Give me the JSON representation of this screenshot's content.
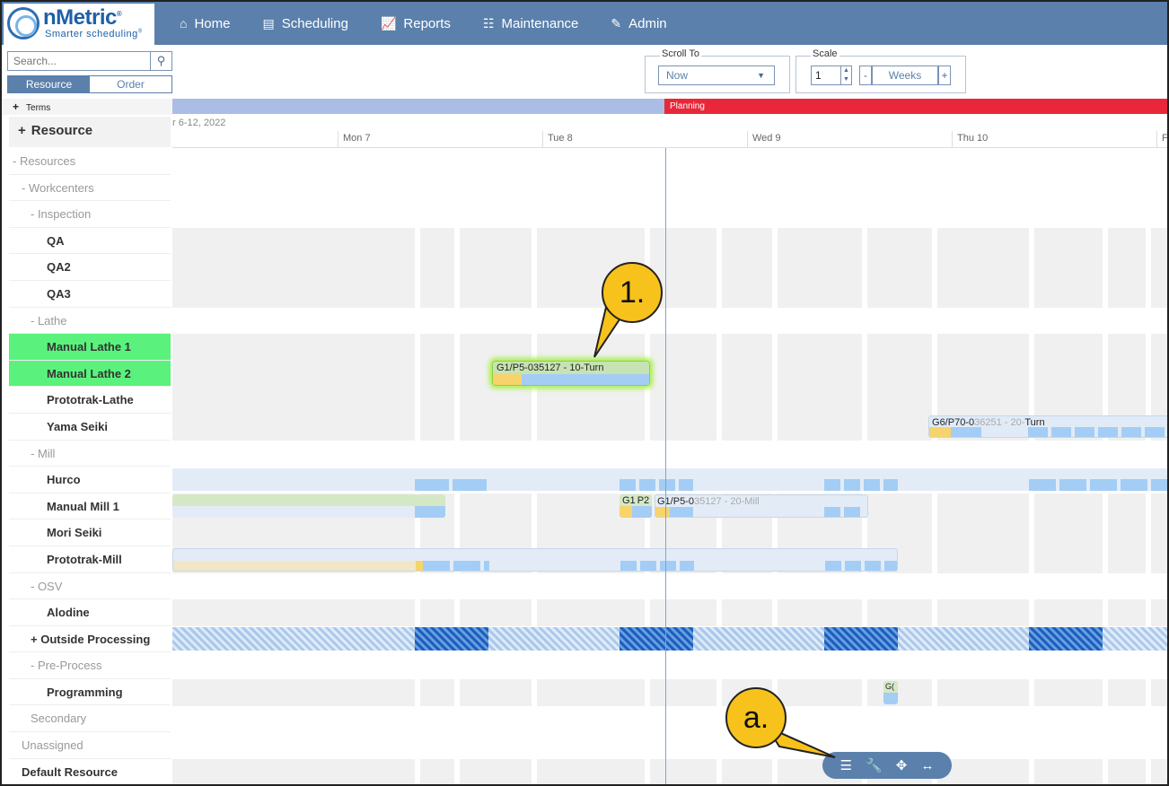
{
  "logo": {
    "name": "nMetric",
    "mark": "®",
    "tagline": "Smarter scheduling",
    "tagline_mark": "®"
  },
  "nav": [
    {
      "label": "Home",
      "icon": "home-icon"
    },
    {
      "label": "Scheduling",
      "icon": "scheduling-icon"
    },
    {
      "label": "Reports",
      "icon": "chart-icon"
    },
    {
      "label": "Maintenance",
      "icon": "sliders-icon"
    },
    {
      "label": "Admin",
      "icon": "edit-icon"
    }
  ],
  "search": {
    "placeholder": "Search..."
  },
  "view_toggle": {
    "resource": "Resource",
    "order": "Order",
    "selected": "Resource"
  },
  "scroll_to": {
    "legend": "Scroll To",
    "value": "Now"
  },
  "scale": {
    "legend": "Scale",
    "value": "1",
    "minus": "-",
    "plus": "+",
    "unit": "Weeks"
  },
  "terms": {
    "expander": "+",
    "label": "Terms"
  },
  "planning": "Planning",
  "resource_header": {
    "expander": "+",
    "label": "Resource"
  },
  "date_range": "r 6-12, 2022",
  "days": [
    "Mon 7",
    "Tue 8",
    "Wed 9",
    "Thu 10",
    "F"
  ],
  "tree": [
    {
      "label": "- Resources",
      "type": "group",
      "indent": 0
    },
    {
      "label": "- Workcenters",
      "type": "group",
      "indent": 1
    },
    {
      "label": "- Inspection",
      "type": "group",
      "indent": 2
    },
    {
      "label": "QA",
      "type": "leaf",
      "indent": 3
    },
    {
      "label": "QA2",
      "type": "leaf",
      "indent": 3
    },
    {
      "label": "QA3",
      "type": "leaf",
      "indent": 3
    },
    {
      "label": "- Lathe",
      "type": "group",
      "indent": 2
    },
    {
      "label": "Manual Lathe 1",
      "type": "leaf",
      "indent": 3,
      "highlight": true
    },
    {
      "label": "Manual Lathe 2",
      "type": "leaf",
      "indent": 3,
      "highlight": true
    },
    {
      "label": "Prototrak-Lathe",
      "type": "leaf",
      "indent": 3
    },
    {
      "label": "Yama Seiki",
      "type": "leaf",
      "indent": 3
    },
    {
      "label": "- Mill",
      "type": "group",
      "indent": 2
    },
    {
      "label": "Hurco",
      "type": "leaf",
      "indent": 3
    },
    {
      "label": "Manual Mill 1",
      "type": "leaf",
      "indent": 3
    },
    {
      "label": "Mori Seiki",
      "type": "leaf",
      "indent": 3
    },
    {
      "label": "Prototrak-Mill",
      "type": "leaf",
      "indent": 3
    },
    {
      "label": "- OSV",
      "type": "group",
      "indent": 2
    },
    {
      "label": "Alodine",
      "type": "leaf",
      "indent": 3
    },
    {
      "label": "+ Outside Processing",
      "type": "leaf",
      "indent": 2
    },
    {
      "label": "- Pre-Process",
      "type": "group",
      "indent": 2
    },
    {
      "label": "Programming",
      "type": "leaf",
      "indent": 3
    },
    {
      "label": "Secondary",
      "type": "group",
      "indent": 2
    },
    {
      "label": "Unassigned",
      "type": "group",
      "indent": 1
    },
    {
      "label": "Default Resource",
      "type": "leaf",
      "indent": 1
    }
  ],
  "tasks": {
    "turn_10": "G1/P5-035127 - 10-Turn",
    "turn_20_prefix": "G",
    "turn_20_mid": "6/P70-0",
    "turn_20_faded": "36251 - 20-",
    "turn_20_end": "Turn",
    "mill_g1": "G1",
    "mill_p2": "P2",
    "mill_20_a": "G1/P5-0",
    "mill_20_b": "35127 - 20-Mill",
    "prog": "G("
  },
  "callouts": {
    "one": "1.",
    "a": "a."
  },
  "toolbar": [
    {
      "icon": "list-icon",
      "glyph": "☰"
    },
    {
      "icon": "wrench-icon",
      "glyph": "🔧"
    },
    {
      "icon": "move-icon",
      "glyph": "✥"
    },
    {
      "icon": "expand-horizontal-icon",
      "glyph": "↔"
    }
  ],
  "colors": {
    "nav_bg": "#5b80ab",
    "planning": "#e8283a",
    "terms": "#a9bde5",
    "highlight_row": "#5af27c",
    "task_blue": "#a3cdf5",
    "task_yellow": "#f7d36b",
    "task_green": "#c7e3b3",
    "callout": "#f8c21c"
  }
}
